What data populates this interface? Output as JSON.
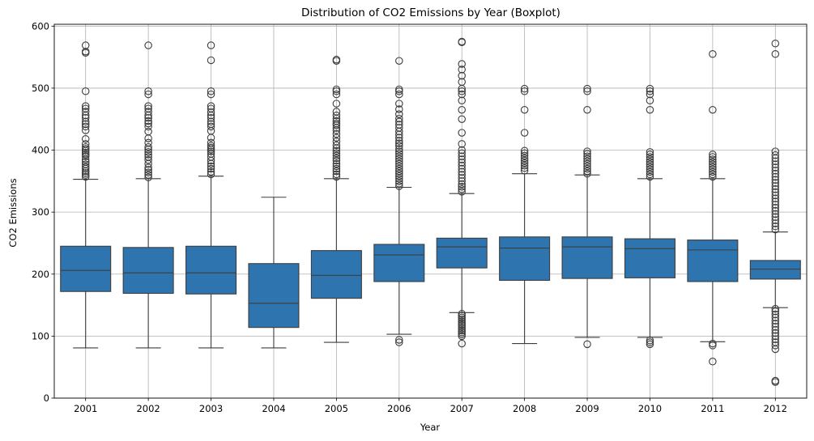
{
  "chart_data": {
    "type": "boxplot",
    "title": "Distribution of CO2 Emissions by Year (Boxplot)",
    "xlabel": "Year",
    "ylabel": "CO2 Emissions",
    "ylim": [
      0,
      603
    ],
    "yticks": [
      0,
      100,
      200,
      300,
      400,
      500,
      600
    ],
    "grid": true,
    "box_color": "#2e75b0",
    "line_color": "#3d3d3d",
    "categories": [
      "2001",
      "2002",
      "2003",
      "2004",
      "2005",
      "2006",
      "2007",
      "2008",
      "2009",
      "2010",
      "2011",
      "2012"
    ],
    "boxes": [
      {
        "year": "2001",
        "whisker_low": 81,
        "q1": 172,
        "median": 206,
        "q3": 245,
        "whisker_high": 353,
        "outliers": [
          357,
          360,
          363,
          366,
          370,
          373,
          377,
          381,
          385,
          390,
          393,
          396,
          399,
          402,
          405,
          410,
          418,
          432,
          438,
          442,
          446,
          452,
          456,
          462,
          467,
          471,
          495,
          557,
          559,
          569
        ]
      },
      {
        "year": "2002",
        "whisker_low": 81,
        "q1": 169,
        "median": 202,
        "q3": 243,
        "whisker_high": 354,
        "outliers": [
          356,
          360,
          364,
          368,
          372,
          378,
          384,
          389,
          393,
          397,
          401,
          405,
          412,
          419,
          430,
          438,
          443,
          447,
          452,
          456,
          462,
          467,
          471,
          490,
          495,
          569
        ]
      },
      {
        "year": "2003",
        "whisker_low": 81,
        "q1": 168,
        "median": 202,
        "q3": 245,
        "whisker_high": 358,
        "outliers": [
          361,
          365,
          370,
          374,
          378,
          383,
          389,
          394,
          398,
          401,
          404,
          407,
          412,
          420,
          431,
          438,
          442,
          446,
          452,
          456,
          461,
          467,
          471,
          490,
          495,
          545,
          569
        ]
      },
      {
        "year": "2004",
        "whisker_low": 81,
        "q1": 114,
        "median": 153,
        "q3": 217,
        "whisker_high": 324,
        "outliers": []
      },
      {
        "year": "2005",
        "whisker_low": 90,
        "q1": 161,
        "median": 198,
        "q3": 238,
        "whisker_high": 354,
        "outliers": [
          357,
          361,
          366,
          370,
          374,
          378,
          383,
          387,
          391,
          395,
          399,
          403,
          408,
          414,
          420,
          426,
          432,
          436,
          440,
          443,
          447,
          451,
          456,
          462,
          475,
          490,
          495,
          498,
          544,
          546
        ]
      },
      {
        "year": "2006",
        "whisker_low": 103,
        "q1": 188,
        "median": 231,
        "q3": 248,
        "whisker_high": 340,
        "outliers": [
          90,
          94,
          342,
          346,
          350,
          354,
          358,
          362,
          366,
          370,
          374,
          378,
          382,
          386,
          390,
          394,
          398,
          402,
          407,
          411,
          415,
          420,
          425,
          430,
          436,
          441,
          446,
          451,
          458,
          466,
          475,
          490,
          495,
          498,
          544
        ]
      },
      {
        "year": "2007",
        "whisker_low": 138,
        "q1": 210,
        "median": 244,
        "q3": 258,
        "whisker_high": 330,
        "outliers": [
          88,
          100,
          103,
          106,
          109,
          112,
          115,
          118,
          121,
          124,
          127,
          130,
          133,
          136,
          333,
          337,
          341,
          345,
          350,
          355,
          360,
          365,
          370,
          375,
          380,
          385,
          390,
          395,
          400,
          410,
          428,
          450,
          465,
          480,
          490,
          495,
          499,
          510,
          520,
          530,
          539,
          574,
          575
        ]
      },
      {
        "year": "2008",
        "whisker_low": 88,
        "q1": 190,
        "median": 242,
        "q3": 260,
        "whisker_high": 362,
        "outliers": [
          367,
          371,
          375,
          379,
          383,
          387,
          391,
          395,
          399,
          428,
          465,
          495,
          499
        ]
      },
      {
        "year": "2009",
        "whisker_low": 98,
        "q1": 193,
        "median": 244,
        "q3": 260,
        "whisker_high": 360,
        "outliers": [
          87,
          362,
          366,
          370,
          374,
          378,
          382,
          386,
          390,
          394,
          398,
          465,
          495,
          499
        ]
      },
      {
        "year": "2010",
        "whisker_low": 98,
        "q1": 194,
        "median": 241,
        "q3": 257,
        "whisker_high": 354,
        "outliers": [
          87,
          90,
          93,
          357,
          361,
          365,
          369,
          373,
          377,
          381,
          385,
          389,
          393,
          397,
          465,
          480,
          490,
          495,
          499
        ]
      },
      {
        "year": "2011",
        "whisker_low": 91,
        "q1": 188,
        "median": 239,
        "q3": 255,
        "whisker_high": 354,
        "outliers": [
          59,
          85,
          88,
          357,
          361,
          365,
          369,
          373,
          377,
          381,
          385,
          389,
          393,
          465,
          555
        ]
      },
      {
        "year": "2012",
        "whisker_low": 146,
        "q1": 192,
        "median": 208,
        "q3": 222,
        "whisker_high": 268,
        "outliers": [
          26,
          28,
          79,
          85,
          90,
          95,
          100,
          105,
          110,
          115,
          120,
          125,
          130,
          135,
          140,
          144,
          272,
          277,
          282,
          287,
          292,
          297,
          302,
          307,
          312,
          317,
          322,
          327,
          332,
          337,
          342,
          347,
          352,
          357,
          362,
          367,
          372,
          377,
          382,
          387,
          392,
          398,
          555,
          572
        ]
      }
    ]
  }
}
